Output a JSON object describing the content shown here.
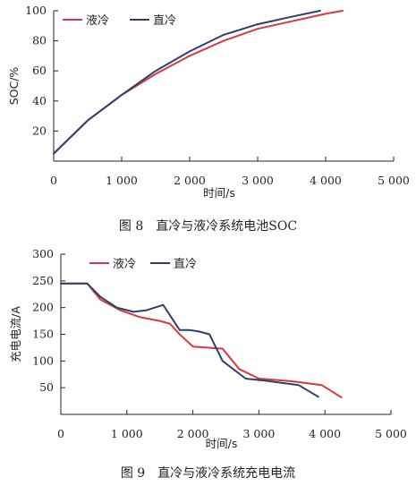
{
  "colors": {
    "liquid": "#d9383f",
    "direct": "#2e3f6e"
  },
  "charts": [
    {
      "caption": "图 8　直冷与液冷系统电池SOC",
      "chart_data": {
        "type": "line",
        "xlabel": "时间/s",
        "ylabel": "SOC/%",
        "xlim": [
          0,
          5000
        ],
        "ylim": [
          0,
          100
        ],
        "xticks": [
          0,
          1000,
          2000,
          3000,
          4000,
          5000
        ],
        "xtick_labels": [
          "0",
          "1 000",
          "2 000",
          "3 000",
          "4 000",
          "5 000"
        ],
        "yticks": [
          20,
          40,
          60,
          80,
          100
        ],
        "ytick_labels": [
          "20",
          "40",
          "60",
          "80",
          "100"
        ],
        "legend_position": "top-left",
        "grid": false,
        "series": [
          {
            "name": "液冷",
            "color_key": "liquid",
            "x": [
              0,
              500,
              1000,
              1500,
              2000,
              2500,
              3000,
              3500,
              4000,
              4250
            ],
            "y": [
              5,
              27,
              44,
              58,
              70,
              80,
              88,
              93,
              98,
              100
            ]
          },
          {
            "name": "直冷",
            "color_key": "direct",
            "x": [
              0,
              500,
              1000,
              1500,
              2000,
              2500,
              3000,
              3500,
              3920
            ],
            "y": [
              5,
              27,
              44,
              60,
              73,
              84,
              91,
              96,
              100
            ]
          }
        ]
      }
    },
    {
      "caption": "图 9　直冷与液冷系统充电电流",
      "chart_data": {
        "type": "line",
        "xlabel": "时间/s",
        "ylabel": "充电电流/A",
        "xlim": [
          0,
          5000
        ],
        "ylim": [
          0,
          300
        ],
        "xticks": [
          0,
          1000,
          2000,
          3000,
          4000,
          5000
        ],
        "xtick_labels": [
          "0",
          "1 000",
          "2 000",
          "3 000",
          "4 000",
          "5 000"
        ],
        "yticks": [
          50,
          100,
          150,
          200,
          250,
          300
        ],
        "ytick_labels": [
          "50",
          "100",
          "150",
          "200",
          "250",
          "300"
        ],
        "legend_position": "top-center",
        "grid": false,
        "series": [
          {
            "name": "液冷",
            "color_key": "liquid",
            "x": [
              0,
              400,
              600,
              900,
              1200,
              1500,
              1650,
              1800,
              2000,
              2450,
              2700,
              3000,
              3500,
              3950,
              4250
            ],
            "y": [
              245,
              245,
              215,
              195,
              182,
              175,
              170,
              150,
              127,
              123,
              85,
              67,
              62,
              55,
              32
            ]
          },
          {
            "name": "直冷",
            "color_key": "direct",
            "x": [
              0,
              400,
              600,
              850,
              1100,
              1300,
              1550,
              1800,
              1950,
              2100,
              2250,
              2450,
              2800,
              3100,
              3600,
              3900
            ],
            "y": [
              245,
              245,
              220,
              200,
              192,
              195,
              205,
              158,
              158,
              155,
              150,
              100,
              67,
              63,
              55,
              33
            ]
          }
        ]
      }
    }
  ]
}
